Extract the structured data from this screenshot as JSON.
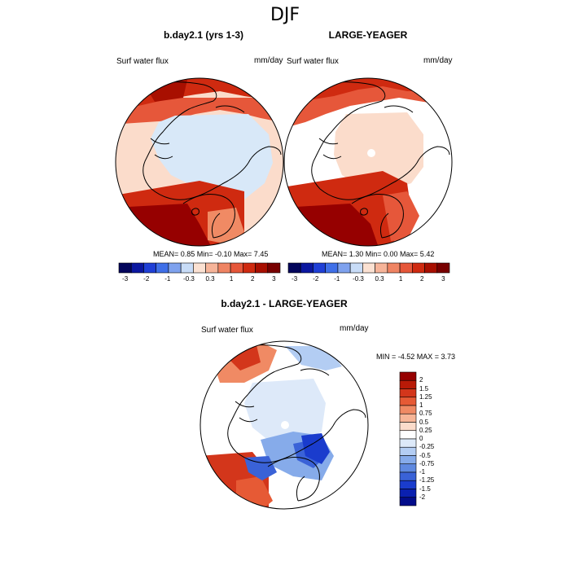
{
  "title": "DJF",
  "colors": {
    "polar_ice": "#d8e8f8",
    "neg_blue": "#1450c8",
    "pos_red": "#cf2a10",
    "dark_red": "#960000",
    "dark_blue": "#0a1480",
    "coast": "#000000",
    "ocean_white": "#ffffff"
  },
  "panels": [
    {
      "id": "bday",
      "title": "b.day2.1 (yrs 1-3)",
      "field_label": "Surf water flux",
      "units": "mm/day",
      "stats": "MEAN=   0.85  Min=  -0.10  Max=   7.45"
    },
    {
      "id": "yeager",
      "title": "LARGE-YEAGER",
      "field_label": "Surf water flux",
      "units": "mm/day",
      "stats": "MEAN=   1.30  Min=   0.00  Max=   5.42"
    }
  ],
  "diff_panel": {
    "title": "b.day2.1 - LARGE-YEAGER",
    "field_label": "Surf water flux",
    "units": "mm/day",
    "minmax": "MIN =  -4.52 MAX =   3.73"
  },
  "chart_data": [
    {
      "type": "heatmap",
      "title": "b.day2.1 (yrs 1-3)",
      "projection": "north-polar-stereographic",
      "colorbar": {
        "orientation": "horizontal",
        "colors": [
          "#03055b",
          "#0b17a0",
          "#1f3fd6",
          "#3f6fe8",
          "#7fa2ee",
          "#c8dcf7",
          "#fbe1d2",
          "#f6b499",
          "#ef8463",
          "#e6573a",
          "#cf2a10",
          "#a80f00",
          "#780000"
        ],
        "tick_labels": [
          "-3",
          "-2",
          "-1",
          "-0.3",
          "0.3",
          "1",
          "2",
          "3"
        ]
      },
      "mean": 0.85,
      "min": -0.1,
      "max": 7.45
    },
    {
      "type": "heatmap",
      "title": "LARGE-YEAGER",
      "projection": "north-polar-stereographic",
      "colorbar": {
        "orientation": "horizontal",
        "colors": [
          "#03055b",
          "#0b17a0",
          "#1f3fd6",
          "#3f6fe8",
          "#7fa2ee",
          "#c8dcf7",
          "#fbe1d2",
          "#f6b499",
          "#ef8463",
          "#e6573a",
          "#cf2a10",
          "#a80f00",
          "#780000"
        ],
        "tick_labels": [
          "-3",
          "-2",
          "-1",
          "-0.3",
          "0.3",
          "1",
          "2",
          "3"
        ]
      },
      "mean": 1.3,
      "min": 0.0,
      "max": 5.42
    },
    {
      "type": "heatmap",
      "title": "b.day2.1 - LARGE-YEAGER",
      "projection": "north-polar-stereographic",
      "colorbar": {
        "orientation": "vertical",
        "colors": [
          "#960000",
          "#b81a07",
          "#d3361b",
          "#e65a35",
          "#f08a64",
          "#f7b597",
          "#fbdccb",
          "#ffffff",
          "#dde9f9",
          "#b3cdf3",
          "#86abea",
          "#5f89e0",
          "#3a62d7",
          "#1a3ccd",
          "#0a20b0",
          "#020c8a"
        ],
        "tick_labels": [
          "2",
          "1.5",
          "1.25",
          "1",
          "0.75",
          "0.5",
          "0.25",
          "0",
          "-0.25",
          "-0.5",
          "-0.75",
          "-1",
          "-1.25",
          "-1.5",
          "-2"
        ]
      },
      "min": -4.52,
      "max": 3.73
    }
  ]
}
